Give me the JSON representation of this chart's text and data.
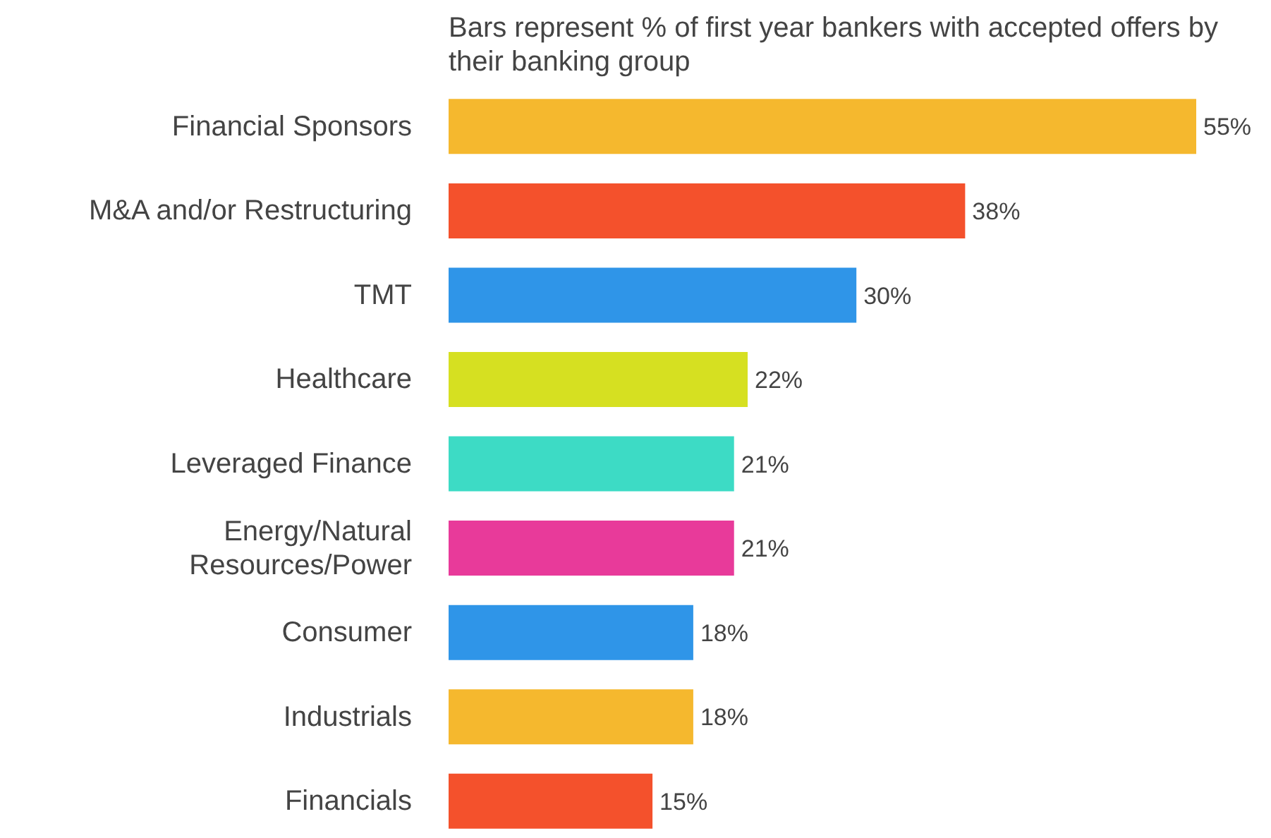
{
  "chart_data": {
    "type": "bar",
    "orientation": "horizontal",
    "title": "Bars represent % of first year bankers with accepted offers by their banking group",
    "categories": [
      "Financial Sponsors",
      "M&A and/or Restructuring",
      "TMT",
      "Healthcare",
      "Leveraged Finance",
      "Energy/Natural Resources/Power",
      "Consumer",
      "Industrials",
      "Financials"
    ],
    "values": [
      55,
      38,
      30,
      22,
      21,
      21,
      18,
      18,
      15
    ],
    "colors": [
      "#f5b82e",
      "#f4512c",
      "#2f95e8",
      "#d6e021",
      "#3ddbc5",
      "#e83a9a",
      "#2f95e8",
      "#f5b82e",
      "#f4512c"
    ],
    "value_labels": [
      "55%",
      "38%",
      "30%",
      "22%",
      "21%",
      "21%",
      "18%",
      "18%",
      "15%"
    ]
  }
}
